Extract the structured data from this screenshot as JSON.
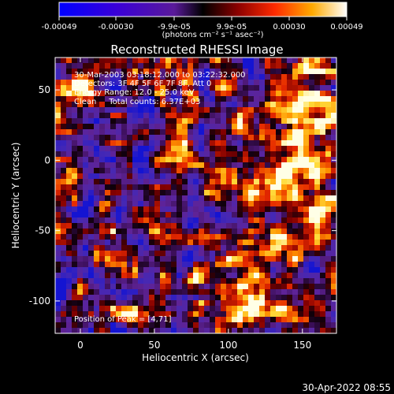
{
  "colorbar": {
    "tick_labels": [
      "-0.00049",
      "-0.00030",
      "-9.9e-05",
      "9.9e-05",
      "0.00030",
      "0.00049"
    ],
    "unit_label": "(photons cm⁻² s⁻¹ asec⁻²)"
  },
  "plot": {
    "title": "Reconstructed RHESSI Image",
    "xlabel": "Heliocentric X (arcsec)",
    "ylabel": "Heliocentric Y (arcsec)",
    "x_ticks": [
      "0",
      "50",
      "100",
      "150"
    ],
    "y_ticks": [
      "50",
      "0",
      "-50",
      "-100"
    ],
    "annotations": [
      "30-Mar-2003 03:18:12.000 to 03:22:32.000",
      "Detectors: 3F 4F 5F 6F 7F 8F, Att 0",
      "Energy Range: 12.0 - 25.0 keV",
      "Clean     Total counts: 6.37E+03"
    ],
    "peak_label": "Position of Peak = [4,71]"
  },
  "footer": {
    "timestamp": "30-Apr-2022 08:55"
  },
  "chart_data": {
    "type": "heatmap",
    "title": "Reconstructed RHESSI Image",
    "xlabel": "Heliocentric X (arcsec)",
    "ylabel": "Heliocentric Y (arcsec)",
    "xlim": [
      -17,
      173
    ],
    "ylim": [
      -123,
      73
    ],
    "colorbar_range": [
      -0.00049,
      0.00049
    ],
    "peak_position": [
      4,
      71
    ]
  }
}
